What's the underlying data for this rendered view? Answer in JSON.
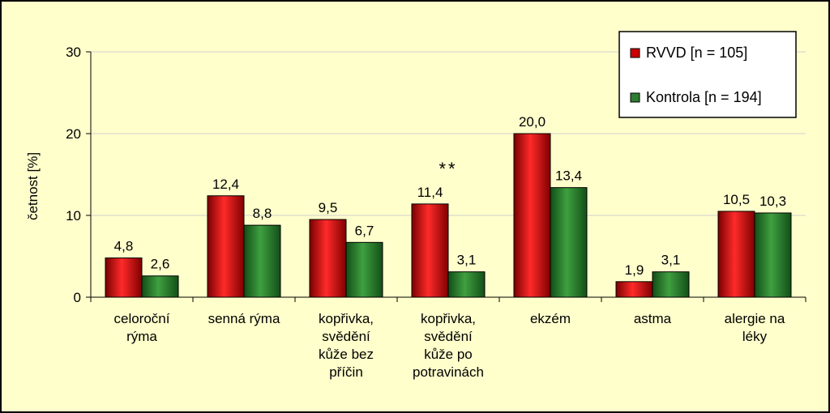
{
  "chart_data": {
    "type": "bar",
    "ylabel": "četnost [%]",
    "ylim": [
      0,
      30
    ],
    "yticks": [
      "0",
      "10",
      "20",
      "30"
    ],
    "categories": [
      [
        "celoroční",
        "rýma"
      ],
      [
        "senná rýma"
      ],
      [
        "kopřivka,",
        "svědění",
        "kůže bez",
        "příčin"
      ],
      [
        "kopřivka,",
        "svědění",
        "kůže po",
        "potravinách"
      ],
      [
        "ekzém"
      ],
      [
        "astma"
      ],
      [
        "alergie na",
        "léky"
      ]
    ],
    "series": [
      {
        "name": "RVVD [n = 105]",
        "color": "#CC0000",
        "values": [
          4.8,
          12.4,
          9.5,
          11.4,
          20.0,
          1.9,
          10.5
        ],
        "labels": [
          "4,8",
          "12,4",
          "9,5",
          "11,4",
          "20,0",
          "1,9",
          "10,5"
        ]
      },
      {
        "name": "Kontrola [n = 194]",
        "color": "#2E7D32",
        "values": [
          2.6,
          8.8,
          6.7,
          3.1,
          13.4,
          3.1,
          10.3
        ],
        "labels": [
          "2,6",
          "8,8",
          "6,7",
          "3,1",
          "13,4",
          "3,1",
          "10,3"
        ]
      }
    ],
    "annotations": [
      {
        "text": "**",
        "category_index": 3
      }
    ],
    "grid": true,
    "legend": "top-right"
  }
}
